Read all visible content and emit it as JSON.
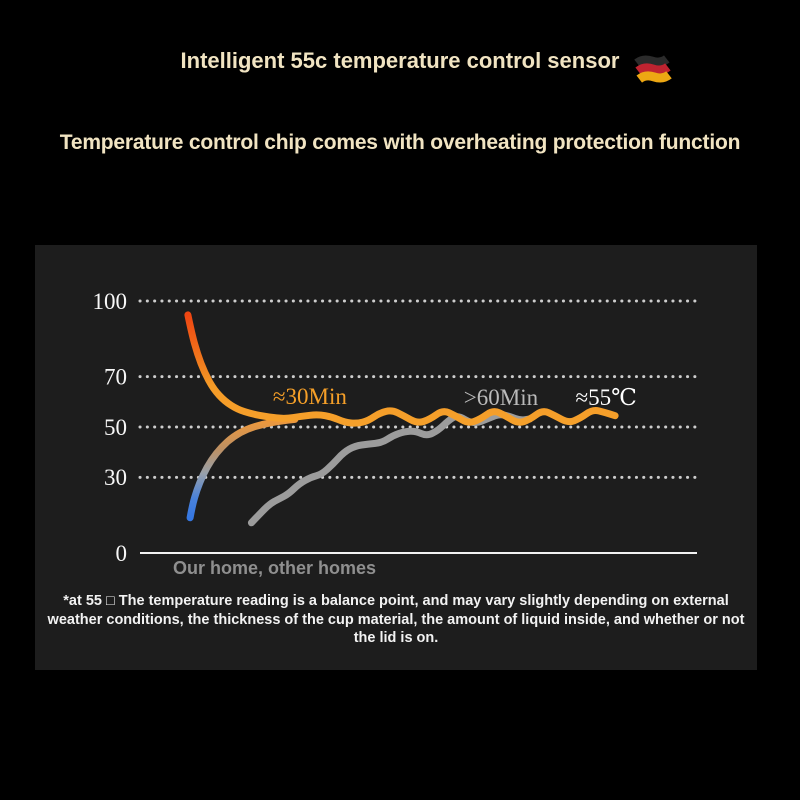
{
  "header": {
    "title": "Intelligent 55c temperature control sensor",
    "subtitle": "Temperature control chip comes with overheating protection function",
    "text_color": "#f1e4c2",
    "flag_icon": "germany-flag-icon"
  },
  "chart_data": {
    "type": "line",
    "title": "",
    "xlabel": "Our home, other homes",
    "ylabel": "",
    "yticks": [
      100,
      70,
      50,
      30,
      0
    ],
    "ylim": [
      0,
      100
    ],
    "grid": "dotted-horizontal",
    "panel_bg": "#1d1d1d",
    "grid_color": "#cdcdcd",
    "axis_color": "#f2f2f2",
    "tick_color": "#f7f7f7",
    "xlabel_color": "#8f8f8f",
    "annotations": [
      {
        "text": "≈30Min",
        "color": "#f59f28",
        "x": 30.5,
        "y": 62.3
      },
      {
        "text": ">60Min",
        "color": "#b9b9b9",
        "x": 64.8,
        "y": 61.9
      },
      {
        "text": "≈55℃",
        "color": "#ffffff",
        "x": 83.7,
        "y": 61.9
      }
    ],
    "series": [
      {
        "name": "our-home-cold-water-heating",
        "gradient": {
          "stops": [
            [
              "0",
              "#f0993a"
            ],
            [
              "0.3",
              "#bd9063"
            ],
            [
              "0.55",
              "#97a0ab"
            ],
            [
              "0.8",
              "#4a82da"
            ],
            [
              "1",
              "#3577e2"
            ]
          ]
        },
        "points": [
          [
            9,
            14
          ],
          [
            9.4,
            19
          ],
          [
            10.2,
            25
          ],
          [
            11.3,
            31
          ],
          [
            12.8,
            37
          ],
          [
            14.6,
            42
          ],
          [
            16.8,
            46.3
          ],
          [
            19.3,
            49.3
          ],
          [
            22.2,
            51.2
          ],
          [
            25.3,
            52.4
          ],
          [
            27.8,
            53
          ]
        ]
      },
      {
        "name": "other-homes-heating",
        "color": "#9c9c9c",
        "points": [
          [
            20,
            12
          ],
          [
            21.5,
            15.5
          ],
          [
            23.3,
            19.5
          ],
          [
            25,
            21.5
          ],
          [
            26.7,
            23.5
          ],
          [
            28.6,
            27.5
          ],
          [
            30.6,
            30
          ],
          [
            32.6,
            31.2
          ],
          [
            34.6,
            35.2
          ],
          [
            36.6,
            40
          ],
          [
            38.6,
            42.5
          ],
          [
            41,
            43.2
          ],
          [
            43.5,
            43.8
          ],
          [
            45.4,
            46.6
          ],
          [
            47.5,
            48.2
          ],
          [
            49.5,
            48.4
          ],
          [
            51.5,
            46.4
          ],
          [
            53.5,
            48.6
          ],
          [
            55.4,
            52.6
          ],
          [
            57,
            54.8
          ],
          [
            59.8,
            51
          ],
          [
            62.8,
            53.6
          ],
          [
            64.6,
            55.2
          ],
          [
            66.4,
            54.2
          ],
          [
            68.2,
            52.6
          ],
          [
            70,
            53.2
          ]
        ]
      },
      {
        "name": "our-home-hot-water-cooling",
        "gradient": {
          "stops": [
            [
              "0",
              "#ef4612"
            ],
            [
              "0.4",
              "#f0761c"
            ],
            [
              "0.65",
              "#f59b27"
            ],
            [
              "1",
              "#f5a02b"
            ]
          ]
        },
        "points": [
          [
            8.6,
            94.5
          ],
          [
            9.3,
            87
          ],
          [
            10.3,
            79
          ],
          [
            11.6,
            71.5
          ],
          [
            13.2,
            65
          ],
          [
            15.2,
            60.2
          ],
          [
            17.5,
            57
          ],
          [
            20,
            55.2
          ],
          [
            23,
            54
          ],
          [
            26,
            53.2
          ],
          [
            29,
            54.3
          ],
          [
            32,
            55
          ],
          [
            34.5,
            54
          ],
          [
            36.8,
            51.8
          ],
          [
            39,
            51.4
          ],
          [
            41,
            52.5
          ],
          [
            43,
            55.5
          ],
          [
            45.2,
            56.8
          ],
          [
            47.3,
            54.5
          ],
          [
            49.8,
            51.4
          ],
          [
            52,
            53
          ],
          [
            54.4,
            56.8
          ],
          [
            56.6,
            54.5
          ],
          [
            58.9,
            51.4
          ],
          [
            61,
            53
          ],
          [
            63.4,
            56.8
          ],
          [
            65.6,
            54.5
          ],
          [
            67.9,
            51.4
          ],
          [
            70,
            53
          ],
          [
            72.3,
            56.8
          ],
          [
            74.5,
            54.5
          ],
          [
            76.9,
            51.6
          ],
          [
            79,
            53.4
          ],
          [
            81.3,
            57
          ],
          [
            83.4,
            55.8
          ],
          [
            85.3,
            54.5
          ]
        ]
      }
    ]
  },
  "footnote": "*at 55 □ The temperature reading is a balance point, and may vary slightly depending on external weather conditions, the thickness of the cup material, the amount of liquid inside, and whether or not the lid is on."
}
